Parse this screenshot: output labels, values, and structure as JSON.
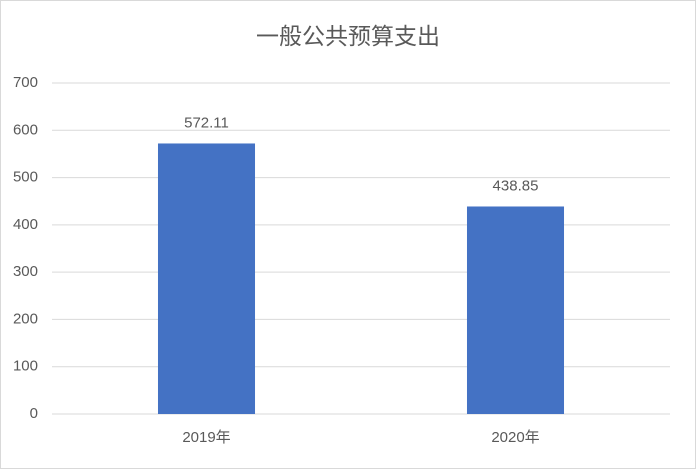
{
  "chart_data": {
    "type": "bar",
    "title": "一般公共预算支出",
    "categories": [
      "2019年",
      "2020年"
    ],
    "values": [
      572.11,
      438.85
    ],
    "color": "#4472c4",
    "ylim": [
      0,
      700
    ],
    "yticks": [
      0,
      100,
      200,
      300,
      400,
      500,
      600,
      700
    ],
    "grid": true,
    "data_labels": true
  }
}
